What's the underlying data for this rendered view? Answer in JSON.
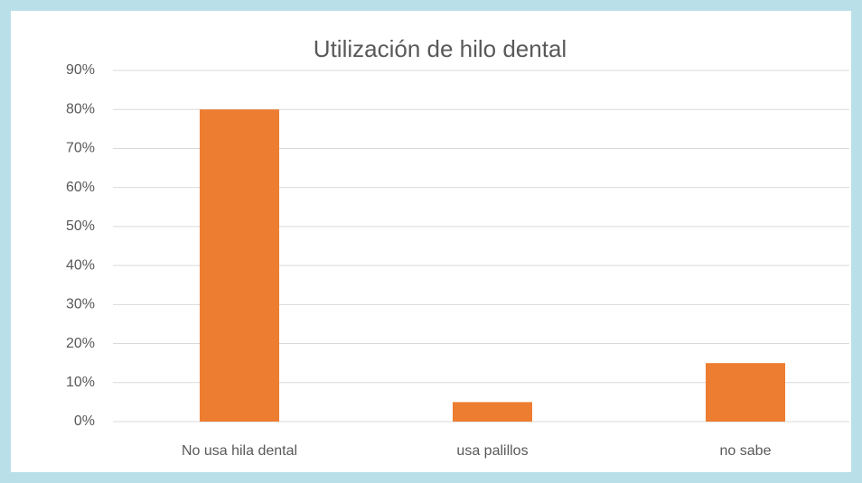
{
  "chart_data": {
    "type": "bar",
    "title": "Utilización de hilo dental",
    "categories": [
      "No usa hila dental",
      "usa palillos",
      "no sabe"
    ],
    "values": [
      80,
      5,
      15
    ],
    "color": "#ed7d31",
    "ylim": [
      0,
      90
    ],
    "yticks": [
      {
        "value": 0,
        "label": "0%"
      },
      {
        "value": 10,
        "label": "10%"
      },
      {
        "value": 20,
        "label": "20%"
      },
      {
        "value": 30,
        "label": "30%"
      },
      {
        "value": 40,
        "label": "40%"
      },
      {
        "value": 50,
        "label": "50%"
      },
      {
        "value": 60,
        "label": "60%"
      },
      {
        "value": 70,
        "label": "70%"
      },
      {
        "value": 80,
        "label": "80%"
      },
      {
        "value": 90,
        "label": "90%"
      }
    ],
    "grid": true
  }
}
